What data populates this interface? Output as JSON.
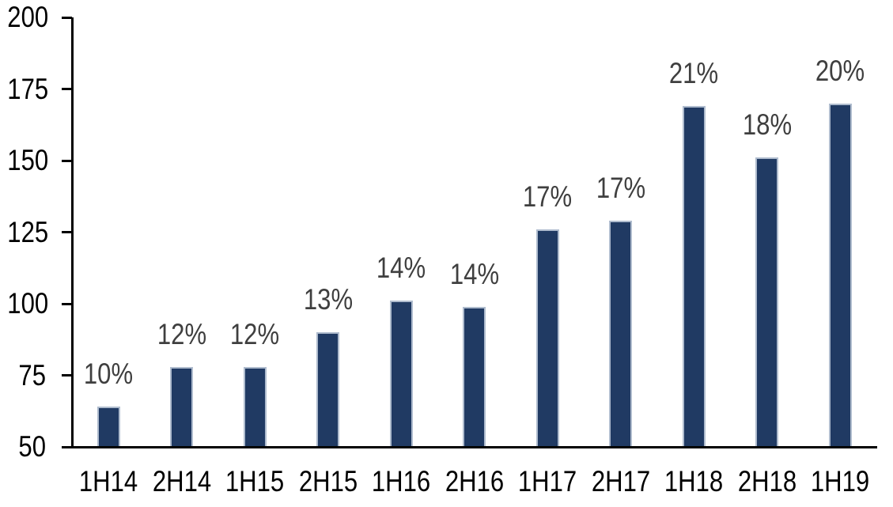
{
  "chart_data": {
    "type": "bar",
    "title": "",
    "xlabel": "",
    "ylabel": "",
    "categories": [
      "1H14",
      "2H14",
      "1H15",
      "2H15",
      "1H16",
      "2H16",
      "1H17",
      "2H17",
      "1H18",
      "2H18",
      "1H19"
    ],
    "values": [
      64,
      78,
      78,
      90,
      101,
      99,
      126,
      129,
      169,
      151,
      170
    ],
    "data_labels": [
      "10%",
      "12%",
      "12%",
      "13%",
      "14%",
      "14%",
      "17%",
      "17%",
      "21%",
      "18%",
      "20%"
    ],
    "ylim": [
      50,
      200
    ],
    "yticks": [
      50,
      75,
      100,
      125,
      150,
      175,
      200
    ],
    "grid": false,
    "legend": false,
    "colors": {
      "bar_fill": "#203A63",
      "bar_border": "#AFBCCE",
      "data_label": "#3F3F3F",
      "axis": "#000000",
      "background": "#ffffff"
    }
  }
}
